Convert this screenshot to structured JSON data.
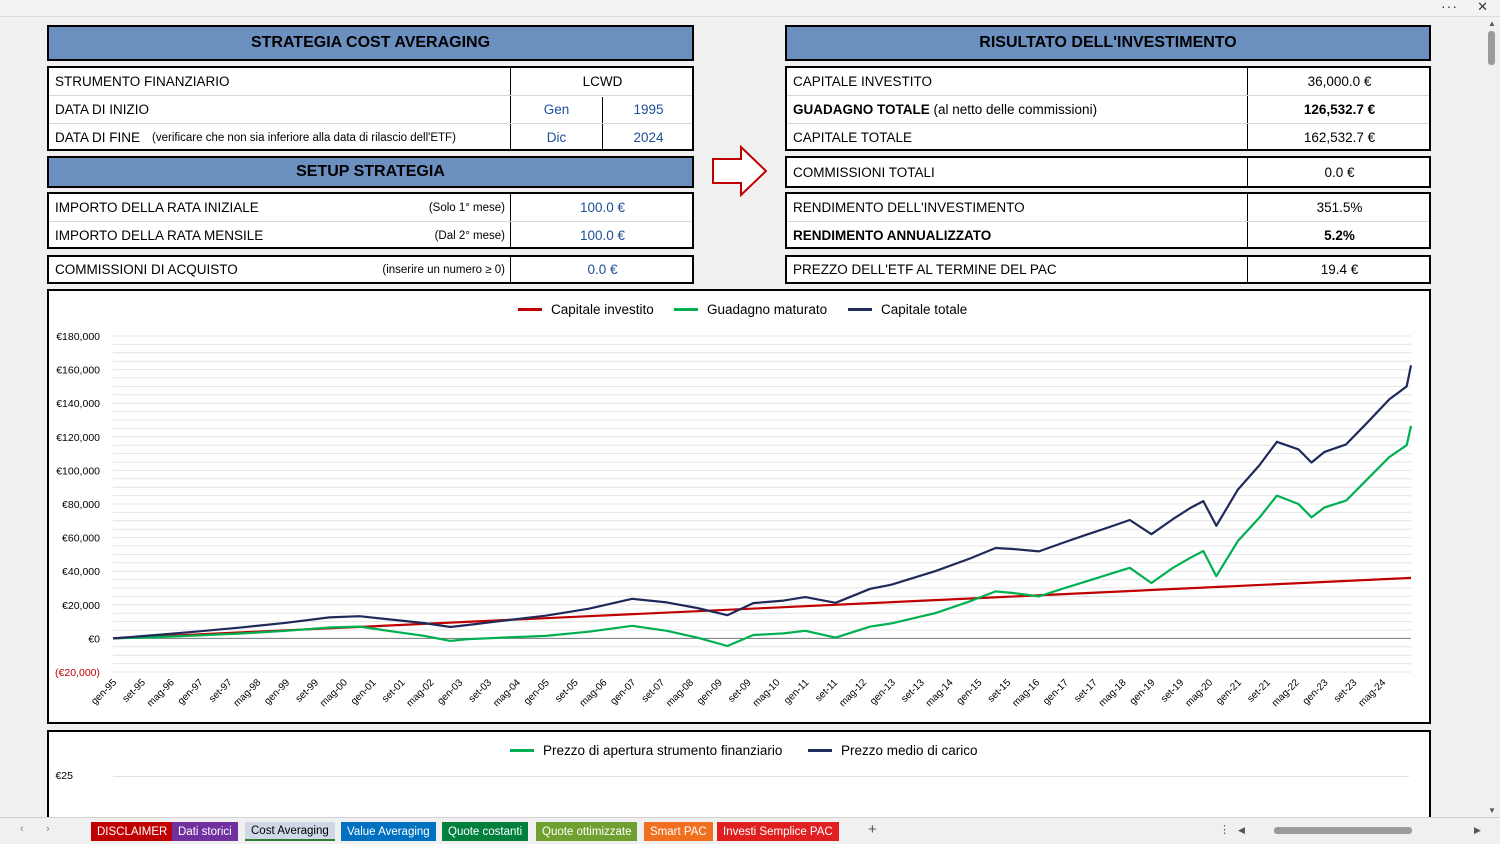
{
  "header": {
    "more_icon": "more-dots-icon",
    "close_icon": "close-icon"
  },
  "left": {
    "title": "STRATEGIA COST AVERAGING",
    "strumento_label": "STRUMENTO FINANZIARIO",
    "strumento_value": "LCWD",
    "inizio_label": "DATA DI INIZIO",
    "inizio_month": "Gen",
    "inizio_year": "1995",
    "fine_label": "DATA DI FINE",
    "fine_note": "(verificare che non sia inferiore alla data di rilascio dell'ETF)",
    "fine_month": "Dic",
    "fine_year": "2024",
    "setup_title": "SETUP STRATEGIA",
    "rata_iniziale_label": "IMPORTO DELLA RATA INIZIALE",
    "rata_iniziale_note": "(Solo 1° mese)",
    "rata_iniziale_value": "100.0 €",
    "rata_mensile_label": "IMPORTO DELLA RATA MENSILE",
    "rata_mensile_note": "(Dal 2° mese)",
    "rata_mensile_value": "100.0 €",
    "commissioni_label": "COMMISSIONI DI ACQUISTO",
    "commissioni_note": "(inserire un numero ≥ 0)",
    "commissioni_value": "0.0 €"
  },
  "right": {
    "title": "RISULTATO DELL'INVESTIMENTO",
    "capitale_investito_label": "CAPITALE INVESTITO",
    "capitale_investito_value": "36,000.0 €",
    "guadagno_label_bold": "GUADAGNO TOTALE",
    "guadagno_label_rest": " (al netto delle commissioni)",
    "guadagno_value": "126,532.7 €",
    "capitale_totale_label": "CAPITALE TOTALE",
    "capitale_totale_value": "162,532.7 €",
    "commissioni_totali_label": "COMMISSIONI TOTALI",
    "commissioni_totali_value": "0.0 €",
    "rendimento_label": "RENDIMENTO DELL'INVESTIMENTO",
    "rendimento_value": "351.5%",
    "rendimento_ann_label": "RENDIMENTO ANNUALIZZATO",
    "rendimento_ann_value": "5.2%",
    "prezzo_label": "PREZZO DELL'ETF AL TERMINE DEL PAC",
    "prezzo_value": "19.4 €",
    "arrow_icon": "right-arrow-icon"
  },
  "chart_data": [
    {
      "type": "line",
      "legend_position": "top",
      "y_tick_labels": [
        "€180,000",
        "€160,000",
        "€140,000",
        "€120,000",
        "€100,000",
        "€80,000",
        "€60,000",
        "€40,000",
        "€20,000",
        "€0",
        "(€20,000)"
      ],
      "ylim": [
        -20000,
        180000
      ],
      "x_tick_labels": [
        "gen-95",
        "set-95",
        "mag-96",
        "gen-97",
        "set-97",
        "mag-98",
        "gen-99",
        "set-99",
        "mag-00",
        "gen-01",
        "set-01",
        "mag-02",
        "gen-03",
        "set-03",
        "mag-04",
        "gen-05",
        "set-05",
        "mag-06",
        "gen-07",
        "set-07",
        "mag-08",
        "gen-09",
        "set-09",
        "mag-10",
        "gen-11",
        "set-11",
        "mag-12",
        "gen-13",
        "set-13",
        "mag-14",
        "gen-15",
        "set-15",
        "mag-16",
        "gen-17",
        "set-17",
        "mag-18",
        "gen-19",
        "set-19",
        "mag-20",
        "gen-21",
        "set-21",
        "mag-22",
        "gen-23",
        "set-23",
        "mag-24"
      ],
      "x_years": [
        1995,
        2025
      ],
      "grid": true,
      "series": [
        {
          "name": "Capitale investito",
          "color": "#c00000",
          "x": [
            1995,
            2000,
            2005,
            2010,
            2015,
            2020,
            2025
          ],
          "y": [
            0,
            6000,
            12000,
            18000,
            24000,
            30000,
            36000
          ]
        },
        {
          "name": "Guadagno maturato",
          "color": "#00b050",
          "x": [
            1995,
            1996,
            1997,
            1998,
            1999,
            2000,
            2000.7,
            2001.5,
            2002.2,
            2002.8,
            2003.2,
            2004,
            2005,
            2006,
            2007,
            2007.8,
            2008.5,
            2009.2,
            2009.8,
            2010.5,
            2011,
            2011.7,
            2012.5,
            2013,
            2014,
            2014.8,
            2015.4,
            2015.8,
            2016.4,
            2017,
            2017.5,
            2018,
            2018.5,
            2019,
            2019.5,
            2019.9,
            2020.2,
            2020.5,
            2021,
            2021.5,
            2021.9,
            2022.4,
            2022.7,
            2023,
            2023.5,
            2024,
            2024.5,
            2024.9,
            2025
          ],
          "y": [
            0,
            800,
            1800,
            3000,
            4500,
            6500,
            7000,
            4000,
            1500,
            -1500,
            -500,
            500,
            1500,
            4000,
            7500,
            4500,
            500,
            -4500,
            2000,
            3000,
            4500,
            500,
            7000,
            9000,
            15000,
            22000,
            28000,
            27000,
            25000,
            30000,
            34000,
            38000,
            42000,
            33000,
            42000,
            48000,
            52000,
            37000,
            58000,
            72000,
            85000,
            80000,
            72000,
            78000,
            82000,
            95000,
            108000,
            115000,
            126500
          ]
        },
        {
          "name": "Capitale totale",
          "color": "#1f2a5a",
          "x": [
            1995,
            1996,
            1997,
            1998,
            1999,
            2000,
            2000.7,
            2001.5,
            2002.2,
            2002.8,
            2003.2,
            2004,
            2005,
            2006,
            2007,
            2007.8,
            2008.5,
            2009.2,
            2009.8,
            2010.5,
            2011,
            2011.7,
            2012.5,
            2013,
            2014,
            2014.8,
            2015.4,
            2015.8,
            2016.4,
            2017,
            2017.5,
            2018,
            2018.5,
            2019,
            2019.5,
            2019.9,
            2020.2,
            2020.5,
            2021,
            2021.5,
            2021.9,
            2022.4,
            2022.7,
            2023,
            2023.5,
            2024,
            2024.5,
            2024.9,
            2025
          ],
          "y": [
            0,
            2000,
            4200,
            6600,
            9300,
            12500,
            13200,
            11000,
            9100,
            6800,
            8000,
            10500,
            13500,
            17700,
            23600,
            21400,
            18100,
            13800,
            21000,
            22500,
            24600,
            21200,
            29500,
            32000,
            40000,
            47500,
            53800,
            53200,
            51800,
            57300,
            61700,
            66000,
            70500,
            62000,
            71000,
            77600,
            81700,
            67000,
            88600,
            103200,
            117000,
            112500,
            104700,
            111000,
            115500,
            128700,
            142300,
            150000,
            162500
          ]
        }
      ]
    },
    {
      "type": "line",
      "legend_position": "top",
      "y_tick_labels": [
        "€25"
      ],
      "series": [
        {
          "name": "Prezzo di apertura strumento finanziario",
          "color": "#00b050"
        },
        {
          "name": "Prezzo medio di carico",
          "color": "#1f2a5a"
        }
      ]
    }
  ],
  "tabs": [
    {
      "label": "DISCLAIMER",
      "color": "#c00000"
    },
    {
      "label": "Dati storici",
      "color": "#7030a0"
    },
    {
      "label": "Cost Averaging",
      "color": "#d0d8e8"
    },
    {
      "label": "Value Averaging",
      "color": "#0070c0"
    },
    {
      "label": "Quote costanti",
      "color": "#00803c"
    },
    {
      "label": "Quote ottimizzate",
      "color": "#70a030"
    },
    {
      "label": "Smart PAC",
      "color": "#f07020"
    },
    {
      "label": "Investi Semplice PAC",
      "color": "#e02020"
    }
  ],
  "tabbar": {
    "add": "+",
    "prev_icon": "chevron-left-icon",
    "next_icon": "chevron-right-icon",
    "menu": "⋮"
  }
}
